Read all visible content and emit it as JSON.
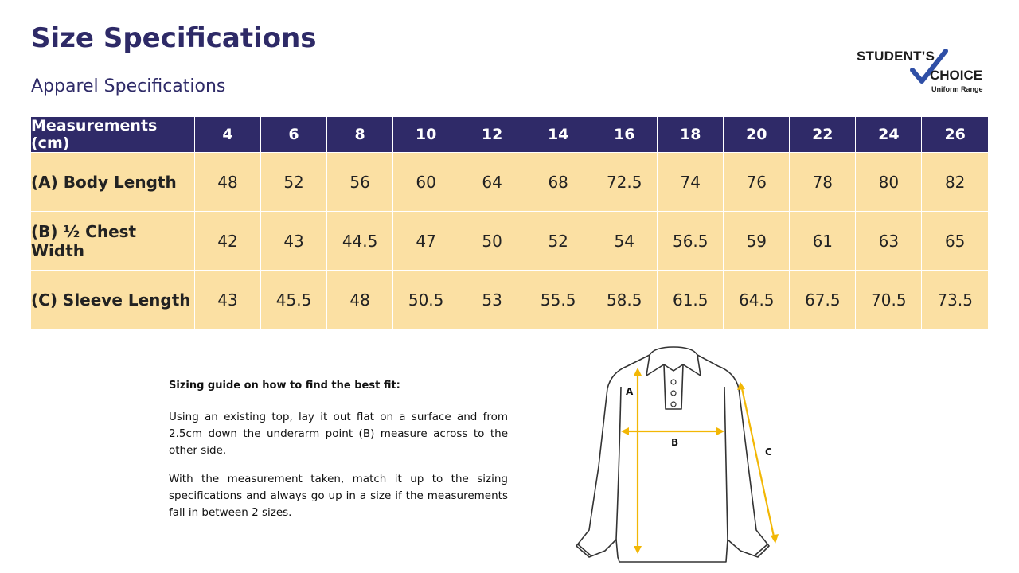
{
  "title": "Size Specifications",
  "subtitle": "Apparel Specifications",
  "logo": {
    "line1": "STUDENT’S",
    "line2": "CHOICE",
    "line3": "Uniform Range"
  },
  "table": {
    "header": [
      "Measurements (cm)",
      "4",
      "6",
      "8",
      "10",
      "12",
      "14",
      "16",
      "18",
      "20",
      "22",
      "24",
      "26"
    ],
    "rows": [
      {
        "label": "(A) Body Length",
        "values": [
          "48",
          "52",
          "56",
          "60",
          "64",
          "68",
          "72.5",
          "74",
          "76",
          "78",
          "80",
          "82"
        ]
      },
      {
        "label": "(B) ½ Chest Width",
        "values": [
          "42",
          "43",
          "44.5",
          "47",
          "50",
          "52",
          "54",
          "56.5",
          "59",
          "61",
          "63",
          "65"
        ]
      },
      {
        "label": "(C) Sleeve Length",
        "values": [
          "43",
          "45.5",
          "48",
          "50.5",
          "53",
          "55.5",
          "58.5",
          "61.5",
          "64.5",
          "67.5",
          "70.5",
          "73.5"
        ]
      }
    ]
  },
  "guide": {
    "heading": "Sizing guide on how to find the best fit:",
    "para1": "Using an existing top, lay it out flat on a surface and from 2.5cm down the underarm point (B) measure across to the other side.",
    "para2": "With the measurement taken, match it up to the sizing specifications and always go up in a size if the measurements fall in between 2 sizes."
  },
  "diagram": {
    "label_a": "A",
    "label_b": "B",
    "label_c": "C"
  },
  "colors": {
    "navy": "#2f2a68",
    "cell": "#fbe0a3",
    "arrow": "#f2b705"
  }
}
